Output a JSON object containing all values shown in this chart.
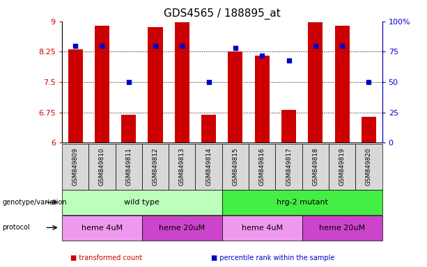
{
  "title": "GDS4565 / 188895_at",
  "samples": [
    "GSM849809",
    "GSM849810",
    "GSM849811",
    "GSM849812",
    "GSM849813",
    "GSM849814",
    "GSM849815",
    "GSM849816",
    "GSM849817",
    "GSM849818",
    "GSM849819",
    "GSM849820"
  ],
  "bar_values": [
    8.3,
    8.9,
    6.7,
    8.85,
    8.98,
    6.7,
    8.25,
    8.15,
    6.82,
    8.98,
    8.9,
    6.65
  ],
  "bar_bottom": 6.0,
  "dot_percentile": [
    80,
    80,
    50,
    80,
    80,
    50,
    78,
    72,
    68,
    80,
    80,
    50
  ],
  "ylim_left": [
    6.0,
    9.0
  ],
  "ylim_right": [
    0,
    100
  ],
  "yticks_left": [
    6.0,
    6.75,
    7.5,
    8.25,
    9.0
  ],
  "ytick_labels_left": [
    "6",
    "6.75",
    "7.5",
    "8.25",
    "9"
  ],
  "yticks_right": [
    0,
    25,
    50,
    75,
    100
  ],
  "ytick_labels_right": [
    "0",
    "25",
    "50",
    "75",
    "100%"
  ],
  "hlines": [
    6.75,
    7.5,
    8.25
  ],
  "bar_color": "#cc0000",
  "dot_color": "#0000cc",
  "bar_width": 0.55,
  "genotype_groups": [
    {
      "label": "wild type",
      "start": 0,
      "end": 5,
      "color": "#bbffbb"
    },
    {
      "label": "hrg-2 mutant",
      "start": 6,
      "end": 11,
      "color": "#44ee44"
    }
  ],
  "protocol_groups": [
    {
      "label": "heme 4uM",
      "start": 0,
      "end": 2,
      "color": "#ee99ee"
    },
    {
      "label": "heme 20uM",
      "start": 3,
      "end": 5,
      "color": "#cc44cc"
    },
    {
      "label": "heme 4uM",
      "start": 6,
      "end": 8,
      "color": "#ee99ee"
    },
    {
      "label": "heme 20uM",
      "start": 9,
      "end": 11,
      "color": "#cc44cc"
    }
  ],
  "legend_items": [
    {
      "label": "transformed count",
      "color": "#cc0000"
    },
    {
      "label": "percentile rank within the sample",
      "color": "#0000cc"
    }
  ],
  "left_axis_color": "#cc0000",
  "right_axis_color": "#0000cc",
  "background_color": "#ffffff",
  "sample_bg_color": "#d8d8d8",
  "title_fontsize": 11,
  "tick_fontsize": 8,
  "label_fontsize": 8,
  "sample_fontsize": 6.5
}
